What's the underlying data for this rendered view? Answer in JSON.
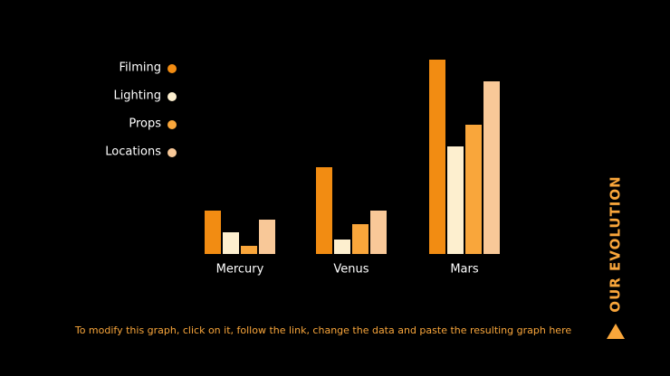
{
  "chart_data": {
    "type": "bar",
    "categories": [
      "Mercury",
      "Venus",
      "Mars"
    ],
    "series": [
      {
        "name": "Filming",
        "color": "#f28c12",
        "values": [
          48,
          96,
          215
        ]
      },
      {
        "name": "Lighting",
        "color": "#fdefcf",
        "values": [
          24,
          16,
          119
        ]
      },
      {
        "name": "Props",
        "color": "#f9a63b",
        "values": [
          9,
          33,
          143
        ]
      },
      {
        "name": "Locations",
        "color": "#f8c898",
        "values": [
          38,
          48,
          191
        ]
      }
    ],
    "ylim": [
      0,
      220
    ]
  },
  "side_title": "OUR EVOLUTION",
  "footnote": "To modify this graph, click on it, follow the link, change the data and paste the resulting graph here"
}
